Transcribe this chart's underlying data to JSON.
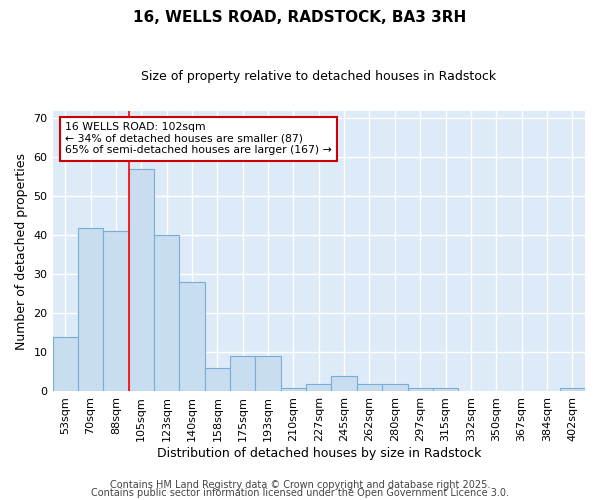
{
  "title1": "16, WELLS ROAD, RADSTOCK, BA3 3RH",
  "title2": "Size of property relative to detached houses in Radstock",
  "xlabel": "Distribution of detached houses by size in Radstock",
  "ylabel": "Number of detached properties",
  "bar_labels": [
    "53sqm",
    "70sqm",
    "88sqm",
    "105sqm",
    "123sqm",
    "140sqm",
    "158sqm",
    "175sqm",
    "193sqm",
    "210sqm",
    "227sqm",
    "245sqm",
    "262sqm",
    "280sqm",
    "297sqm",
    "315sqm",
    "332sqm",
    "350sqm",
    "367sqm",
    "384sqm",
    "402sqm"
  ],
  "bar_values": [
    14,
    42,
    41,
    57,
    40,
    28,
    6,
    9,
    9,
    1,
    2,
    4,
    2,
    2,
    1,
    1,
    0,
    0,
    0,
    0,
    1
  ],
  "bar_color": "#c8ddf0",
  "bar_edgecolor": "#7aadd4",
  "bar_linewidth": 0.8,
  "plot_bg_color": "#ddeaf7",
  "grid_color": "#ffffff",
  "red_line_index": 2.5,
  "annotation_text": "16 WELLS ROAD: 102sqm\n← 34% of detached houses are smaller (87)\n65% of semi-detached houses are larger (167) →",
  "annotation_box_facecolor": "#ffffff",
  "annotation_box_edgecolor": "#cc0000",
  "ylim": [
    0,
    72
  ],
  "yticks": [
    0,
    10,
    20,
    30,
    40,
    50,
    60,
    70
  ],
  "footer1": "Contains HM Land Registry data © Crown copyright and database right 2025.",
  "footer2": "Contains public sector information licensed under the Open Government Licence 3.0.",
  "fig_bg_color": "#ffffff",
  "title1_fontsize": 11,
  "title2_fontsize": 9,
  "xlabel_fontsize": 9,
  "ylabel_fontsize": 9,
  "tick_fontsize": 8,
  "footer_fontsize": 7
}
